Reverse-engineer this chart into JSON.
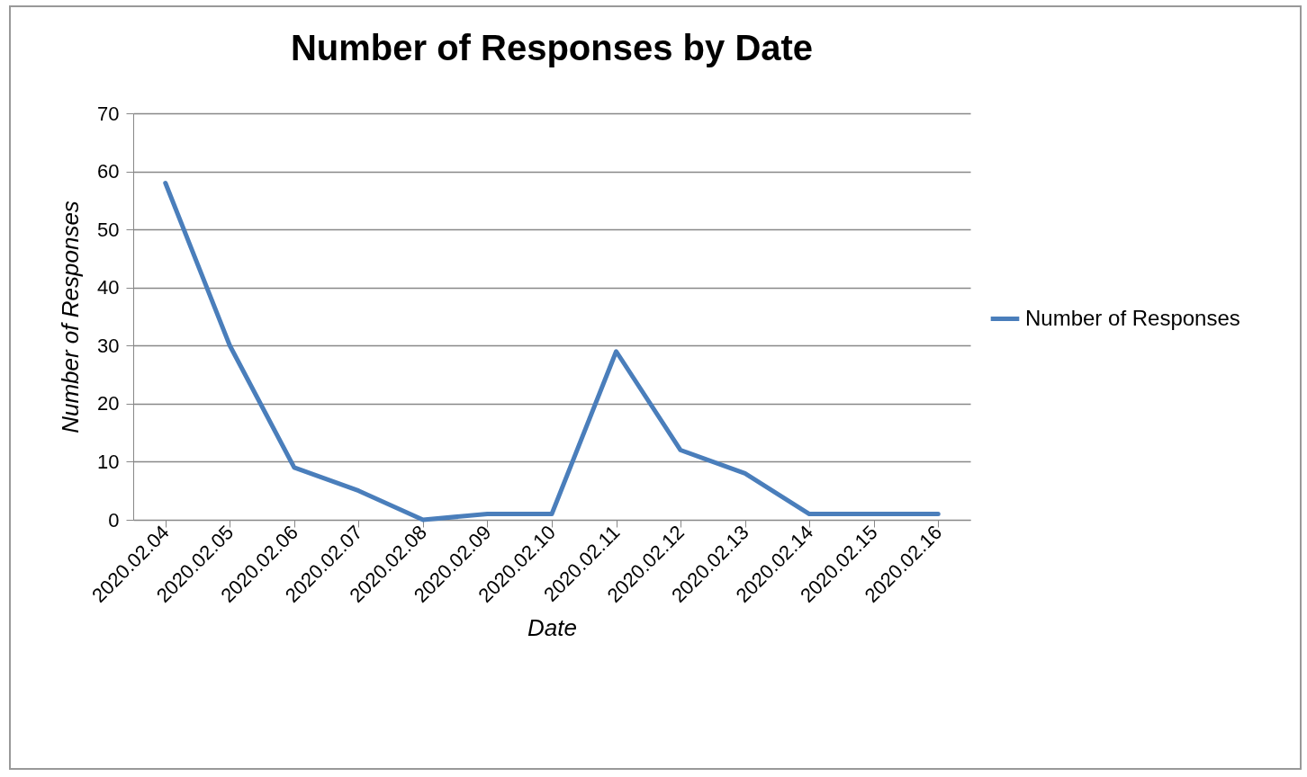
{
  "chart_data": {
    "type": "line",
    "title": "Number of Responses by Date",
    "xlabel": "Date",
    "ylabel": "Number of Responses",
    "categories": [
      "2020.02.04",
      "2020.02.05",
      "2020.02.06",
      "2020.02.07",
      "2020.02.08",
      "2020.02.09",
      "2020.02.10",
      "2020.02.11",
      "2020.02.12",
      "2020.02.13",
      "2020.02.14",
      "2020.02.15",
      "2020.02.16"
    ],
    "series": [
      {
        "name": "Number of Responses",
        "color": "#4a7ebb",
        "values": [
          58,
          30,
          9,
          5,
          0,
          1,
          1,
          29,
          12,
          8,
          1,
          1,
          1
        ]
      }
    ],
    "ylim": [
      0,
      70
    ],
    "yticks": [
      0,
      10,
      20,
      30,
      40,
      50,
      60,
      70
    ],
    "grid": "y",
    "legend": "right",
    "marker": "none",
    "line_style": "solid"
  }
}
